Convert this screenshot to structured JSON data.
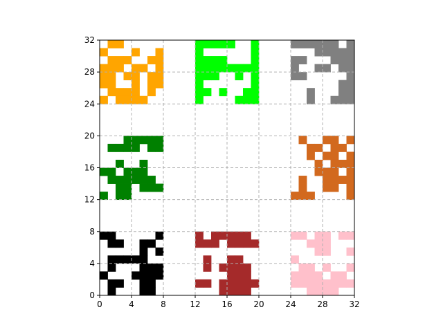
{
  "chart_data": {
    "type": "heatmap",
    "title": "",
    "xlabel": "",
    "ylabel": "",
    "xlim": [
      0,
      32
    ],
    "ylim": [
      0,
      32
    ],
    "xticks": [
      0,
      4,
      8,
      12,
      16,
      20,
      24,
      28,
      32
    ],
    "yticks": [
      0,
      4,
      8,
      12,
      16,
      20,
      24,
      28,
      32
    ],
    "xtick_labels": [
      "0",
      "4",
      "8",
      "12",
      "16",
      "20",
      "24",
      "28",
      "32"
    ],
    "ytick_labels": [
      "0",
      "4",
      "8",
      "12",
      "16",
      "20",
      "24",
      "28",
      "32"
    ],
    "grid": true,
    "grid_style": "dashed",
    "grid_color": "#b0b0b0",
    "cell_size": 1,
    "block_size": 8,
    "blocks": [
      {
        "color": "#ffa500",
        "origin": [
          0,
          24
        ],
        "rows": [
          "01100000",
          "10001001",
          "01110011",
          "11101101",
          "11011011",
          "11001011",
          "01111010",
          "10111100"
        ]
      },
      {
        "color": "#00ff00",
        "origin": [
          12,
          24
        ],
        "rows": [
          "11111001",
          "10000001",
          "11110001",
          "11111111",
          "11100101",
          "10000001",
          "11010011",
          "10000111"
        ]
      },
      {
        "color": "#808080",
        "origin": [
          24,
          24
        ],
        "rows": [
          "11111101",
          "00011111",
          "11000111",
          "10011011",
          "11000001",
          "00000011",
          "00100011",
          "00100111"
        ]
      },
      {
        "color": "#008000",
        "origin": [
          0,
          12
        ],
        "rows": [
          "00011111",
          "01111011",
          "00000000",
          "00100100",
          "11011100",
          "01111110",
          "00110111",
          "10110000"
        ]
      },
      {
        "color": "#d2691e",
        "origin": [
          24,
          12
        ],
        "rows": [
          "01001101",
          "00110110",
          "00101101",
          "00010111",
          "00011101",
          "01001111",
          "01001101",
          "11100001"
        ]
      },
      {
        "color": "#000000",
        "origin": [
          0,
          0
        ],
        "rows": [
          "11000001",
          "01100110",
          "00000101",
          "01111100",
          "01000111",
          "10001111",
          "01100110",
          "01000110"
        ]
      },
      {
        "color": "#a52a2a",
        "origin": [
          12,
          0
        ],
        "rows": [
          "10111110",
          "11101111",
          "00000000",
          "01001100",
          "01011110",
          "00001110",
          "11011111",
          "00011110"
        ]
      },
      {
        "color": "#ffc0cb",
        "origin": [
          24,
          0
        ],
        "rows": [
          "11011011",
          "00111000",
          "00011001",
          "10000000",
          "01101001",
          "11110110",
          "11111111",
          "00111100"
        ]
      }
    ]
  }
}
